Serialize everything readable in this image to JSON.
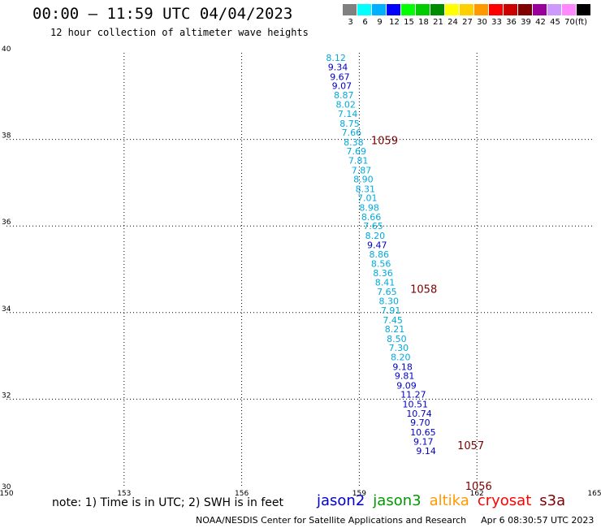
{
  "header": {
    "title": "00:00 – 11:59 UTC 04/04/2023",
    "subtitle": "12 hour collection of altimeter wave heights"
  },
  "colorbar": {
    "unit": "(ft)",
    "bins": [
      {
        "label": "3",
        "color": "#808080"
      },
      {
        "label": "6",
        "color": "#00ffff"
      },
      {
        "label": "9",
        "color": "#00b0ff"
      },
      {
        "label": "12",
        "color": "#0000ff"
      },
      {
        "label": "15",
        "color": "#00ff00"
      },
      {
        "label": "18",
        "color": "#00cc00"
      },
      {
        "label": "21",
        "color": "#008c00"
      },
      {
        "label": "24",
        "color": "#ffff00"
      },
      {
        "label": "27",
        "color": "#ffd000"
      },
      {
        "label": "30",
        "color": "#ff9900"
      },
      {
        "label": "33",
        "color": "#ff0000"
      },
      {
        "label": "36",
        "color": "#cc0000"
      },
      {
        "label": "39",
        "color": "#800000"
      },
      {
        "label": "42",
        "color": "#990099"
      },
      {
        "label": "45",
        "color": "#cc99ff"
      },
      {
        "label": "70",
        "color": "#ff88ff"
      },
      {
        "label": "",
        "color": "#000000"
      }
    ]
  },
  "map": {
    "lon_ticks": [
      "150",
      "153",
      "156",
      "159",
      "162",
      "165"
    ],
    "lat_ticks": [
      "30",
      "32",
      "34",
      "36",
      "38",
      "40"
    ],
    "colors": {
      "light": "#00aadd",
      "dark": "#0000c8",
      "pass": "#7b0000",
      "grid": "#000000"
    },
    "pass_labels": [
      {
        "text": "1059",
        "lat": 37.98,
        "lon": 159.3
      },
      {
        "text": "1058",
        "lat": 34.55,
        "lon": 160.3
      },
      {
        "text": "1057",
        "lat": 30.94,
        "lon": 161.5
      },
      {
        "text": "1056",
        "lat": 30.0,
        "lon": 161.7
      }
    ],
    "observations": [
      {
        "v": "8.12",
        "lat": 39.89,
        "lon": 158.15,
        "c": "light"
      },
      {
        "v": "9.34",
        "lat": 39.67,
        "lon": 158.2,
        "c": "dark"
      },
      {
        "v": "9.67",
        "lat": 39.45,
        "lon": 158.25,
        "c": "dark"
      },
      {
        "v": "9.07",
        "lat": 39.24,
        "lon": 158.3,
        "c": "dark"
      },
      {
        "v": "8.87",
        "lat": 39.02,
        "lon": 158.35,
        "c": "light"
      },
      {
        "v": "8.02",
        "lat": 38.81,
        "lon": 158.4,
        "c": "light"
      },
      {
        "v": "7.14",
        "lat": 38.59,
        "lon": 158.45,
        "c": "light"
      },
      {
        "v": "8.75",
        "lat": 38.37,
        "lon": 158.5,
        "c": "light"
      },
      {
        "v": "7.66",
        "lat": 38.16,
        "lon": 158.55,
        "c": "light"
      },
      {
        "v": "8.38",
        "lat": 37.94,
        "lon": 158.6,
        "c": "light"
      },
      {
        "v": "7.69",
        "lat": 37.73,
        "lon": 158.67,
        "c": "light"
      },
      {
        "v": "7.81",
        "lat": 37.51,
        "lon": 158.72,
        "c": "light"
      },
      {
        "v": "7.87",
        "lat": 37.29,
        "lon": 158.8,
        "c": "light"
      },
      {
        "v": "8.90",
        "lat": 37.08,
        "lon": 158.85,
        "c": "light"
      },
      {
        "v": "8.31",
        "lat": 36.86,
        "lon": 158.9,
        "c": "light"
      },
      {
        "v": "7.01",
        "lat": 36.65,
        "lon": 158.95,
        "c": "light"
      },
      {
        "v": "8.98",
        "lat": 36.43,
        "lon": 159.0,
        "c": "light"
      },
      {
        "v": "8.66",
        "lat": 36.21,
        "lon": 159.05,
        "c": "light"
      },
      {
        "v": "7.65",
        "lat": 36.0,
        "lon": 159.1,
        "c": "light"
      },
      {
        "v": "8.20",
        "lat": 35.78,
        "lon": 159.15,
        "c": "light"
      },
      {
        "v": "9.47",
        "lat": 35.56,
        "lon": 159.2,
        "c": "dark"
      },
      {
        "v": "8.86",
        "lat": 35.35,
        "lon": 159.25,
        "c": "light"
      },
      {
        "v": "8.56",
        "lat": 35.13,
        "lon": 159.3,
        "c": "light"
      },
      {
        "v": "8.36",
        "lat": 34.92,
        "lon": 159.35,
        "c": "light"
      },
      {
        "v": "8.41",
        "lat": 34.7,
        "lon": 159.4,
        "c": "light"
      },
      {
        "v": "7.65",
        "lat": 34.48,
        "lon": 159.45,
        "c": "light"
      },
      {
        "v": "8.30",
        "lat": 34.27,
        "lon": 159.5,
        "c": "light"
      },
      {
        "v": "7.91",
        "lat": 34.05,
        "lon": 159.55,
        "c": "light"
      },
      {
        "v": "7.45",
        "lat": 33.83,
        "lon": 159.6,
        "c": "light"
      },
      {
        "v": "8.21",
        "lat": 33.62,
        "lon": 159.65,
        "c": "light"
      },
      {
        "v": "8.50",
        "lat": 33.4,
        "lon": 159.7,
        "c": "light"
      },
      {
        "v": "7.30",
        "lat": 33.19,
        "lon": 159.75,
        "c": "light"
      },
      {
        "v": "8.20",
        "lat": 32.97,
        "lon": 159.8,
        "c": "light"
      },
      {
        "v": "9.18",
        "lat": 32.75,
        "lon": 159.85,
        "c": "dark"
      },
      {
        "v": "9.81",
        "lat": 32.54,
        "lon": 159.9,
        "c": "dark"
      },
      {
        "v": "9.09",
        "lat": 32.32,
        "lon": 159.95,
        "c": "dark"
      },
      {
        "v": "11.27",
        "lat": 32.11,
        "lon": 160.05,
        "c": "dark"
      },
      {
        "v": "10.51",
        "lat": 31.89,
        "lon": 160.1,
        "c": "dark"
      },
      {
        "v": "10.74",
        "lat": 31.67,
        "lon": 160.2,
        "c": "dark"
      },
      {
        "v": "9.70",
        "lat": 31.46,
        "lon": 160.3,
        "c": "dark"
      },
      {
        "v": "10.65",
        "lat": 31.24,
        "lon": 160.3,
        "c": "dark"
      },
      {
        "v": "9.17",
        "lat": 31.02,
        "lon": 160.38,
        "c": "dark"
      },
      {
        "v": "9.14",
        "lat": 30.81,
        "lon": 160.45,
        "c": "dark"
      }
    ]
  },
  "footer": {
    "note": "note: 1) Time is in UTC; 2) SWH is in feet",
    "satellites": [
      {
        "name": "jason2",
        "color": "#0000cc"
      },
      {
        "name": "jason3",
        "color": "#009900"
      },
      {
        "name": "altika",
        "color": "#ff9900"
      },
      {
        "name": "cryosat",
        "color": "#ff0000"
      },
      {
        "name": "s3a",
        "color": "#800000"
      }
    ],
    "credit": "NOAA/NESDIS Center for Satellite Applications and Research",
    "timestamp": "Apr  6 08:30:57 UTC 2023"
  }
}
